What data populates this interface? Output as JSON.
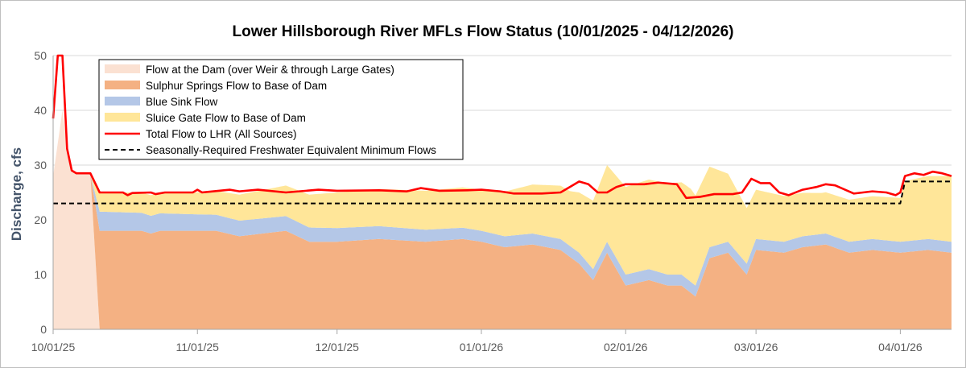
{
  "chart_data": {
    "type": "area",
    "title": "Lower Hillsborough River MFLs Flow Status (10/01/2025 - 04/12/2026)",
    "ylabel": "Discharge, cfs",
    "xlabel": "",
    "x_range": [
      "10/01/25",
      "04/12/26"
    ],
    "ylim": [
      0,
      50
    ],
    "yticks": [
      "0",
      "10",
      "20",
      "30",
      "40",
      "50"
    ],
    "xticks": [
      {
        "date": "2025-10-01",
        "label": "10/01/25"
      },
      {
        "date": "2025-11-01",
        "label": "11/01/25"
      },
      {
        "date": "2025-12-01",
        "label": "12/01/25"
      },
      {
        "date": "2026-01-01",
        "label": "01/01/26"
      },
      {
        "date": "2026-02-01",
        "label": "02/01/26"
      },
      {
        "date": "2026-03-01",
        "label": "03/01/26"
      },
      {
        "date": "2026-04-01",
        "label": "04/01/26"
      }
    ],
    "x_start": "2025-10-01",
    "x_end": "2026-04-12",
    "grid": "horizontal",
    "legend_position": "top-left",
    "series": [
      {
        "name": "Flow at the Dam (over Weir & through Large Gates)",
        "kind": "area",
        "stack": 1,
        "color": "#fbe1d2",
        "points": [
          [
            "2025-10-01",
            28
          ],
          [
            "2025-10-03",
            40
          ],
          [
            "2025-10-04",
            33
          ],
          [
            "2025-10-05",
            29
          ],
          [
            "2025-10-07",
            28.5
          ],
          [
            "2025-10-09",
            28.3
          ],
          [
            "2025-10-11",
            0
          ],
          [
            "2026-04-12",
            0
          ]
        ]
      },
      {
        "name": "Sulphur Springs Flow to Base of Dam",
        "kind": "area",
        "stack": 2,
        "color": "#f4b183",
        "points": [
          [
            "2025-10-01",
            0
          ],
          [
            "2025-10-09",
            0
          ],
          [
            "2025-10-11",
            18
          ],
          [
            "2025-10-20",
            18
          ],
          [
            "2025-10-22",
            17.5
          ],
          [
            "2025-10-24",
            18
          ],
          [
            "2025-11-05",
            18
          ],
          [
            "2025-11-10",
            17
          ],
          [
            "2025-11-20",
            18
          ],
          [
            "2025-11-25",
            16
          ],
          [
            "2025-12-01",
            16
          ],
          [
            "2025-12-10",
            16.5
          ],
          [
            "2025-12-20",
            16
          ],
          [
            "2025-12-28",
            16.5
          ],
          [
            "2026-01-01",
            16
          ],
          [
            "2026-01-06",
            15
          ],
          [
            "2026-01-12",
            15.5
          ],
          [
            "2026-01-18",
            14.5
          ],
          [
            "2026-01-22",
            12
          ],
          [
            "2026-01-25",
            9
          ],
          [
            "2026-01-28",
            14
          ],
          [
            "2026-02-01",
            8
          ],
          [
            "2026-02-06",
            9
          ],
          [
            "2026-02-10",
            8
          ],
          [
            "2026-02-13",
            8
          ],
          [
            "2026-02-16",
            6
          ],
          [
            "2026-02-19",
            13
          ],
          [
            "2026-02-23",
            14
          ],
          [
            "2026-02-27",
            10
          ],
          [
            "2026-03-01",
            14.5
          ],
          [
            "2026-03-07",
            14
          ],
          [
            "2026-03-11",
            15
          ],
          [
            "2026-03-16",
            15.5
          ],
          [
            "2026-03-21",
            14
          ],
          [
            "2026-03-26",
            14.5
          ],
          [
            "2026-04-01",
            14
          ],
          [
            "2026-04-07",
            14.5
          ],
          [
            "2026-04-12",
            14
          ]
        ]
      },
      {
        "name": "Blue Sink Flow",
        "kind": "area",
        "stack": 3,
        "color": "#b4c7e7",
        "points": [
          [
            "2025-10-01",
            0
          ],
          [
            "2025-10-09",
            0
          ],
          [
            "2025-10-11",
            3.5
          ],
          [
            "2025-11-01",
            3
          ],
          [
            "2025-12-01",
            2.5
          ],
          [
            "2026-01-01",
            2
          ],
          [
            "2026-02-01",
            2
          ],
          [
            "2026-03-01",
            2
          ],
          [
            "2026-04-01",
            2
          ],
          [
            "2026-04-12",
            2
          ]
        ]
      },
      {
        "name": "Sluice Gate Flow to Base of Dam",
        "kind": "area",
        "stack": 4,
        "color": "#ffe699",
        "points": [
          [
            "2025-10-01",
            0
          ],
          [
            "2025-10-09",
            0
          ],
          [
            "2025-10-11",
            3.5
          ],
          [
            "2025-11-01",
            4
          ],
          [
            "2025-12-01",
            6.5
          ],
          [
            "2026-01-01",
            7.5
          ],
          [
            "2026-01-20",
            10
          ],
          [
            "2026-02-01",
            16
          ],
          [
            "2026-02-15",
            17
          ],
          [
            "2026-03-01",
            9
          ],
          [
            "2026-03-15",
            7.5
          ],
          [
            "2026-04-01",
            8
          ],
          [
            "2026-04-02",
            11
          ],
          [
            "2026-04-12",
            12
          ]
        ]
      },
      {
        "name": "Total Flow to LHR (All Sources)",
        "kind": "line",
        "color": "#ff0000",
        "points": [
          [
            "2025-10-01",
            38.5
          ],
          [
            "2025-10-02",
            50
          ],
          [
            "2025-10-03",
            50
          ],
          [
            "2025-10-04",
            33
          ],
          [
            "2025-10-05",
            29
          ],
          [
            "2025-10-06",
            28.5
          ],
          [
            "2025-10-09",
            28.5
          ],
          [
            "2025-10-11",
            25
          ],
          [
            "2025-10-16",
            25
          ],
          [
            "2025-10-17",
            24.5
          ],
          [
            "2025-10-18",
            24.9
          ],
          [
            "2025-10-22",
            25
          ],
          [
            "2025-10-23",
            24.7
          ],
          [
            "2025-10-25",
            25
          ],
          [
            "2025-10-31",
            25
          ],
          [
            "2025-11-01",
            25.5
          ],
          [
            "2025-11-02",
            25
          ],
          [
            "2025-11-08",
            25.5
          ],
          [
            "2025-11-10",
            25.2
          ],
          [
            "2025-11-14",
            25.5
          ],
          [
            "2025-11-20",
            25
          ],
          [
            "2025-11-27",
            25.5
          ],
          [
            "2025-12-01",
            25.3
          ],
          [
            "2025-12-10",
            25.4
          ],
          [
            "2025-12-16",
            25.2
          ],
          [
            "2025-12-19",
            25.8
          ],
          [
            "2025-12-23",
            25.3
          ],
          [
            "2025-12-29",
            25.4
          ],
          [
            "2026-01-01",
            25.5
          ],
          [
            "2026-01-05",
            25.2
          ],
          [
            "2026-01-08",
            24.8
          ],
          [
            "2026-01-14",
            24.8
          ],
          [
            "2026-01-18",
            25
          ],
          [
            "2026-01-20",
            26
          ],
          [
            "2026-01-22",
            27
          ],
          [
            "2026-01-24",
            26.5
          ],
          [
            "2026-01-26",
            25
          ],
          [
            "2026-01-28",
            25
          ],
          [
            "2026-01-30",
            26
          ],
          [
            "2026-02-01",
            26.5
          ],
          [
            "2026-02-05",
            26.5
          ],
          [
            "2026-02-08",
            26.8
          ],
          [
            "2026-02-12",
            26.5
          ],
          [
            "2026-02-14",
            24
          ],
          [
            "2026-02-17",
            24.2
          ],
          [
            "2026-02-20",
            24.7
          ],
          [
            "2026-02-24",
            24.7
          ],
          [
            "2026-02-26",
            25
          ],
          [
            "2026-02-28",
            27.5
          ],
          [
            "2026-03-02",
            26.7
          ],
          [
            "2026-03-04",
            26.7
          ],
          [
            "2026-03-06",
            25
          ],
          [
            "2026-03-08",
            24.5
          ],
          [
            "2026-03-11",
            25.5
          ],
          [
            "2026-03-14",
            26
          ],
          [
            "2026-03-16",
            26.5
          ],
          [
            "2026-03-18",
            26.3
          ],
          [
            "2026-03-22",
            24.8
          ],
          [
            "2026-03-26",
            25.2
          ],
          [
            "2026-03-29",
            25
          ],
          [
            "2026-03-31",
            24.5
          ],
          [
            "2026-04-01",
            25
          ],
          [
            "2026-04-02",
            28
          ],
          [
            "2026-04-04",
            28.5
          ],
          [
            "2026-04-06",
            28.2
          ],
          [
            "2026-04-08",
            28.8
          ],
          [
            "2026-04-10",
            28.5
          ],
          [
            "2026-04-12",
            28
          ]
        ]
      },
      {
        "name": "Seasonally-Required Freshwater Equivalent Minimum Flows",
        "kind": "dashed",
        "color": "#000000",
        "points": [
          [
            "2025-10-01",
            23
          ],
          [
            "2026-04-01",
            23
          ],
          [
            "2026-04-02",
            27
          ],
          [
            "2026-04-12",
            27
          ]
        ]
      }
    ]
  }
}
